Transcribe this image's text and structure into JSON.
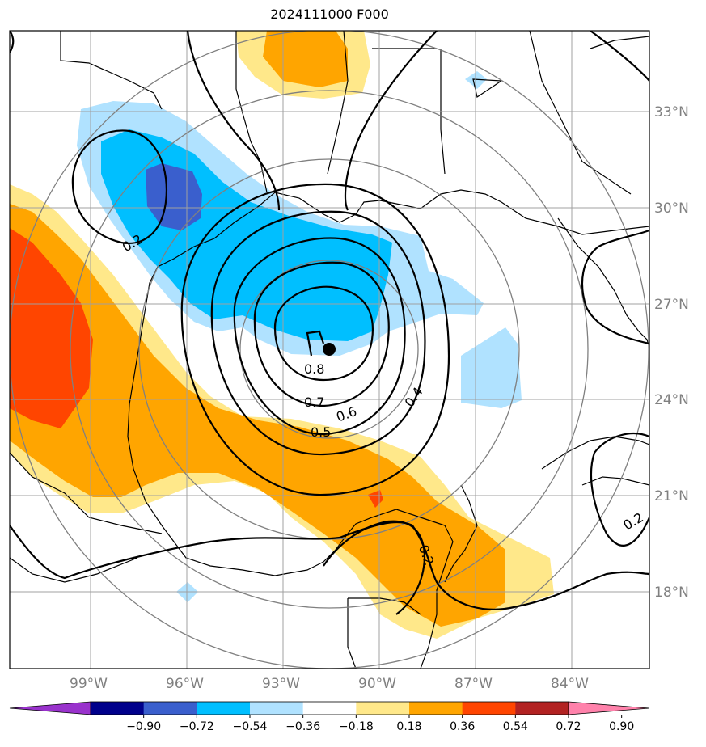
{
  "title": "2024111000 F000",
  "map": {
    "lat_labels": [
      "33°N",
      "30°N",
      "27°N",
      "24°N",
      "21°N",
      "18°N"
    ],
    "lon_labels": [
      "99°W",
      "96°W",
      "93°W",
      "90°W",
      "87°W",
      "84°W"
    ],
    "contour_labels": [
      "0.8",
      "0.7",
      "0.6",
      "0.5",
      "0.4",
      "0.2",
      "0.2",
      "0.2"
    ],
    "center_marker": "storm-center-dot",
    "colors": {
      "purple": "#9932cc",
      "navy": "#00008b",
      "royal": "#3a5fcd",
      "blue": "#00bfff",
      "lightblue": "#b0e2ff",
      "white": "#ffffff",
      "yellow": "#ffe88a",
      "orange": "#ffa500",
      "redorange": "#ff4500",
      "firebrick": "#b22222",
      "pink": "#ff82ab"
    }
  },
  "colorbar": {
    "ticks": [
      "−0.90",
      "−0.72",
      "−0.54",
      "−0.36",
      "−0.18",
      "0.18",
      "0.36",
      "0.54",
      "0.72",
      "0.90"
    ],
    "colors": [
      "#9932cc",
      "#00008b",
      "#3a5fcd",
      "#00bfff",
      "#b0e2ff",
      "#ffffff",
      "#ffe88a",
      "#ffa500",
      "#ff4500",
      "#b22222",
      "#ff82ab"
    ]
  }
}
